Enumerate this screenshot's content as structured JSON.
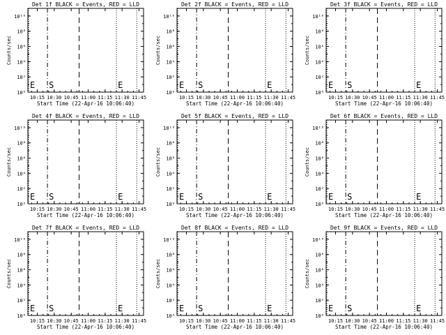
{
  "chart_data": [
    {
      "type": "line",
      "title": "Det 1f BLACK = Events, RED = LLD",
      "xlabel": "Start Time (22-Apr-16 10:06:40)",
      "ylabel": "Counts/sec",
      "yscale": "log",
      "ylim": [
        1,
        100000000000
      ],
      "yticks": [
        "10⁰",
        "10²",
        "10⁴",
        "10⁶",
        "10⁸",
        "10¹⁰"
      ],
      "xticks": [
        "10:15",
        "10:30",
        "10:45",
        "11:00",
        "11:15",
        "11:30",
        "11:45"
      ],
      "xlim": [
        "10:06:40",
        "11:49:00"
      ],
      "markers": [
        {
          "x": "10:06:40",
          "label": "E",
          "style": "dotted"
        },
        {
          "x": "10:24:00",
          "label": "S",
          "style": "dashdot"
        },
        {
          "x": "10:52:00",
          "label": "",
          "style": "dashed"
        },
        {
          "x": "11:25:00",
          "label": "E",
          "style": "dotted"
        },
        {
          "x": "11:43:00",
          "label": "",
          "style": "dotted"
        }
      ],
      "series": [],
      "grid": false
    },
    {
      "type": "line",
      "title": "Det 2f BLACK = Events, RED = LLD",
      "xlabel": "Start Time (22-Apr-16 10:06:40)",
      "ylabel": "Counts/sec",
      "yscale": "log",
      "ylim": [
        1,
        100000000000
      ],
      "yticks": [
        "10⁰",
        "10²",
        "10⁴",
        "10⁶",
        "10⁸",
        "10¹⁰"
      ],
      "xticks": [
        "10:15",
        "10:30",
        "10:45",
        "11:00",
        "11:15",
        "11:30",
        "11:45"
      ],
      "xlim": [
        "10:06:40",
        "11:49:00"
      ],
      "markers": [
        {
          "x": "10:06:40",
          "label": "E",
          "style": "dotted"
        },
        {
          "x": "10:24:00",
          "label": "S",
          "style": "dashdot"
        },
        {
          "x": "10:52:00",
          "label": "",
          "style": "dashed"
        },
        {
          "x": "11:25:00",
          "label": "E",
          "style": "dotted"
        },
        {
          "x": "11:43:00",
          "label": "",
          "style": "dotted"
        }
      ],
      "series": [],
      "grid": false
    },
    {
      "type": "line",
      "title": "Det 3f BLACK = Events, RED = LLD",
      "xlabel": "Start Time (22-Apr-16 10:06:40)",
      "ylabel": "Counts/sec",
      "yscale": "log",
      "ylim": [
        1,
        100000000000
      ],
      "yticks": [
        "10⁰",
        "10²",
        "10⁴",
        "10⁶",
        "10⁸",
        "10¹⁰"
      ],
      "xticks": [
        "10:15",
        "10:30",
        "10:45",
        "11:00",
        "11:15",
        "11:30",
        "11:45"
      ],
      "xlim": [
        "10:06:40",
        "11:49:00"
      ],
      "markers": [
        {
          "x": "10:06:40",
          "label": "E",
          "style": "dotted"
        },
        {
          "x": "10:24:00",
          "label": "S",
          "style": "dashdot"
        },
        {
          "x": "10:52:00",
          "label": "",
          "style": "dashed"
        },
        {
          "x": "11:25:00",
          "label": "E",
          "style": "dotted"
        },
        {
          "x": "11:43:00",
          "label": "",
          "style": "dotted"
        }
      ],
      "series": [],
      "grid": false
    },
    {
      "type": "line",
      "title": "Det 4f BLACK = Events, RED = LLD",
      "xlabel": "Start Time (22-Apr-16 10:06:40)",
      "ylabel": "Counts/sec",
      "yscale": "log",
      "ylim": [
        1,
        100000000000
      ],
      "yticks": [
        "10⁰",
        "10²",
        "10⁴",
        "10⁶",
        "10⁸",
        "10¹⁰"
      ],
      "xticks": [
        "10:15",
        "10:30",
        "10:45",
        "11:00",
        "11:15",
        "11:30",
        "11:45"
      ],
      "xlim": [
        "10:06:40",
        "11:49:00"
      ],
      "markers": [
        {
          "x": "10:06:40",
          "label": "E",
          "style": "dotted"
        },
        {
          "x": "10:24:00",
          "label": "S",
          "style": "dashdot"
        },
        {
          "x": "10:52:00",
          "label": "",
          "style": "dashed"
        },
        {
          "x": "11:25:00",
          "label": "E",
          "style": "dotted"
        },
        {
          "x": "11:43:00",
          "label": "",
          "style": "dotted"
        }
      ],
      "series": [],
      "grid": false
    },
    {
      "type": "line",
      "title": "Det 5f BLACK = Events, RED = LLD",
      "xlabel": "Start Time (22-Apr-16 10:06:40)",
      "ylabel": "Counts/sec",
      "yscale": "log",
      "ylim": [
        1,
        100000000000
      ],
      "yticks": [
        "10⁰",
        "10²",
        "10⁴",
        "10⁶",
        "10⁸",
        "10¹⁰"
      ],
      "xticks": [
        "10:15",
        "10:30",
        "10:45",
        "11:00",
        "11:15",
        "11:30",
        "11:45"
      ],
      "xlim": [
        "10:06:40",
        "11:49:00"
      ],
      "markers": [
        {
          "x": "10:06:40",
          "label": "E",
          "style": "dotted"
        },
        {
          "x": "10:24:00",
          "label": "S",
          "style": "dashdot"
        },
        {
          "x": "10:52:00",
          "label": "",
          "style": "dashed"
        },
        {
          "x": "11:25:00",
          "label": "E",
          "style": "dotted"
        },
        {
          "x": "11:43:00",
          "label": "",
          "style": "dotted"
        }
      ],
      "series": [],
      "grid": false
    },
    {
      "type": "line",
      "title": "Det 6f BLACK = Events, RED = LLD",
      "xlabel": "Start Time (22-Apr-16 10:06:40)",
      "ylabel": "Counts/sec",
      "yscale": "log",
      "ylim": [
        1,
        100000000000
      ],
      "yticks": [
        "10⁰",
        "10²",
        "10⁴",
        "10⁶",
        "10⁸",
        "10¹⁰"
      ],
      "xticks": [
        "10:15",
        "10:30",
        "10:45",
        "11:00",
        "11:15",
        "11:30",
        "11:45"
      ],
      "xlim": [
        "10:06:40",
        "11:49:00"
      ],
      "markers": [
        {
          "x": "10:06:40",
          "label": "E",
          "style": "dotted"
        },
        {
          "x": "10:24:00",
          "label": "S",
          "style": "dashdot"
        },
        {
          "x": "10:52:00",
          "label": "",
          "style": "dashed"
        },
        {
          "x": "11:25:00",
          "label": "E",
          "style": "dotted"
        },
        {
          "x": "11:43:00",
          "label": "",
          "style": "dotted"
        }
      ],
      "series": [],
      "grid": false
    },
    {
      "type": "line",
      "title": "Det 7f BLACK = Events, RED = LLD",
      "xlabel": "Start Time (22-Apr-16 10:06:40)",
      "ylabel": "Counts/sec",
      "yscale": "log",
      "ylim": [
        1,
        100000000000
      ],
      "yticks": [
        "10⁰",
        "10²",
        "10⁴",
        "10⁶",
        "10⁸",
        "10¹⁰"
      ],
      "xticks": [
        "10:15",
        "10:30",
        "10:45",
        "11:00",
        "11:15",
        "11:30",
        "11:45"
      ],
      "xlim": [
        "10:06:40",
        "11:49:00"
      ],
      "markers": [
        {
          "x": "10:06:40",
          "label": "E",
          "style": "dotted"
        },
        {
          "x": "10:24:00",
          "label": "S",
          "style": "dashdot"
        },
        {
          "x": "10:52:00",
          "label": "",
          "style": "dashed"
        },
        {
          "x": "11:25:00",
          "label": "E",
          "style": "dotted"
        },
        {
          "x": "11:43:00",
          "label": "",
          "style": "dotted"
        }
      ],
      "series": [],
      "grid": false
    },
    {
      "type": "line",
      "title": "Det 8f BLACK = Events, RED = LLD",
      "xlabel": "Start Time (22-Apr-16 10:06:40)",
      "ylabel": "Counts/sec",
      "yscale": "log",
      "ylim": [
        1,
        100000000000
      ],
      "yticks": [
        "10⁰",
        "10²",
        "10⁴",
        "10⁶",
        "10⁸",
        "10¹⁰"
      ],
      "xticks": [
        "10:15",
        "10:30",
        "10:45",
        "11:00",
        "11:15",
        "11:30",
        "11:45"
      ],
      "xlim": [
        "10:06:40",
        "11:49:00"
      ],
      "markers": [
        {
          "x": "10:06:40",
          "label": "E",
          "style": "dotted"
        },
        {
          "x": "10:24:00",
          "label": "S",
          "style": "dashdot"
        },
        {
          "x": "10:52:00",
          "label": "",
          "style": "dashed"
        },
        {
          "x": "11:25:00",
          "label": "E",
          "style": "dotted"
        },
        {
          "x": "11:43:00",
          "label": "",
          "style": "dotted"
        }
      ],
      "series": [],
      "grid": false
    },
    {
      "type": "line",
      "title": "Det 9f BLACK = Events, RED = LLD",
      "xlabel": "Start Time (22-Apr-16 10:06:40)",
      "ylabel": "Counts/sec",
      "yscale": "log",
      "ylim": [
        1,
        100000000000
      ],
      "yticks": [
        "10⁰",
        "10²",
        "10⁴",
        "10⁶",
        "10⁸",
        "10¹⁰"
      ],
      "xticks": [
        "10:15",
        "10:30",
        "10:45",
        "11:00",
        "11:15",
        "11:30",
        "11:45"
      ],
      "xlim": [
        "10:06:40",
        "11:49:00"
      ],
      "markers": [
        {
          "x": "10:06:40",
          "label": "E",
          "style": "dotted"
        },
        {
          "x": "10:24:00",
          "label": "S",
          "style": "dashdot"
        },
        {
          "x": "10:52:00",
          "label": "",
          "style": "dashed"
        },
        {
          "x": "11:25:00",
          "label": "E",
          "style": "dotted"
        },
        {
          "x": "11:43:00",
          "label": "",
          "style": "dotted"
        }
      ],
      "series": [],
      "grid": false
    }
  ]
}
